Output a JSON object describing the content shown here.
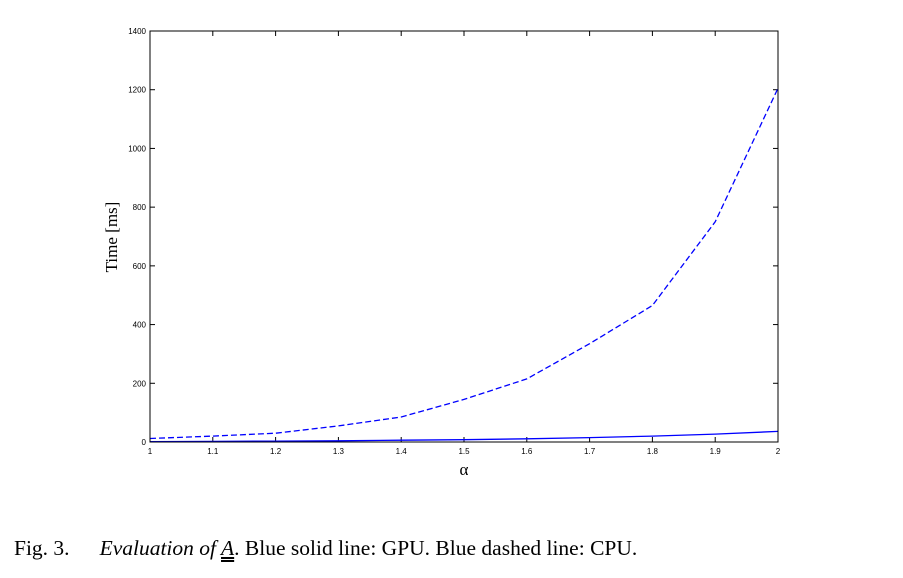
{
  "chart_data": {
    "type": "line",
    "xlabel": "α",
    "ylabel": "Time [ms]",
    "xlim": [
      1,
      2
    ],
    "ylim": [
      0,
      1400
    ],
    "xticks": [
      1,
      1.1,
      1.2,
      1.3,
      1.4,
      1.5,
      1.6,
      1.7,
      1.8,
      1.9,
      2
    ],
    "xtick_labels": [
      "1",
      "1.1",
      "1.2",
      "1.3",
      "1.4",
      "1.5",
      "1.6",
      "1.7",
      "1.8",
      "1.9",
      "2"
    ],
    "yticks": [
      0,
      200,
      400,
      600,
      800,
      1000,
      1200,
      1400
    ],
    "ytick_labels": [
      "0",
      "200",
      "400",
      "600",
      "800",
      "1000",
      "1200",
      "1400"
    ],
    "grid": false,
    "series": [
      {
        "color": "#0000ff",
        "style": "solid",
        "x": [
          1,
          1.1,
          1.2,
          1.3,
          1.4,
          1.5,
          1.6,
          1.7,
          1.8,
          1.9,
          2
        ],
        "y": [
          1,
          2,
          3,
          4,
          6,
          8,
          11,
          15,
          20,
          27,
          36
        ]
      },
      {
        "color": "#0000ff",
        "style": "dashed",
        "x": [
          1,
          1.1,
          1.2,
          1.3,
          1.4,
          1.5,
          1.6,
          1.7,
          1.8,
          1.9,
          2
        ],
        "y": [
          12,
          20,
          30,
          55,
          85,
          145,
          215,
          335,
          465,
          750,
          1205
        ]
      }
    ]
  },
  "caption": {
    "number": "Fig. 3.",
    "title_prefix": "Evaluation of",
    "title_symbol": "A",
    "title_suffix": ".",
    "text": " Blue solid line: GPU. Blue dashed line: CPU."
  }
}
